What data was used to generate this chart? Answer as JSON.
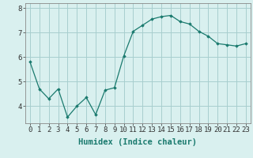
{
  "x": [
    0,
    1,
    2,
    3,
    4,
    5,
    6,
    7,
    8,
    9,
    10,
    11,
    12,
    13,
    14,
    15,
    16,
    17,
    18,
    19,
    20,
    21,
    22,
    23
  ],
  "y": [
    5.8,
    4.7,
    4.3,
    4.7,
    3.55,
    4.0,
    4.35,
    3.65,
    4.65,
    4.75,
    6.05,
    7.05,
    7.3,
    7.55,
    7.65,
    7.7,
    7.45,
    7.35,
    7.05,
    6.85,
    6.55,
    6.5,
    6.45,
    6.55
  ],
  "line_color": "#1a7a6e",
  "marker": "D",
  "marker_size": 1.8,
  "bg_color": "#d9f0ef",
  "grid_color": "#a8cece",
  "xlabel": "Humidex (Indice chaleur)",
  "xlabel_fontsize": 7.5,
  "tick_fontsize": 6.5,
  "ylim": [
    3.3,
    8.2
  ],
  "xlim": [
    -0.5,
    23.5
  ],
  "yticks": [
    4,
    5,
    6,
    7,
    8
  ],
  "xticks": [
    0,
    1,
    2,
    3,
    4,
    5,
    6,
    7,
    8,
    9,
    10,
    11,
    12,
    13,
    14,
    15,
    16,
    17,
    18,
    19,
    20,
    21,
    22,
    23
  ]
}
